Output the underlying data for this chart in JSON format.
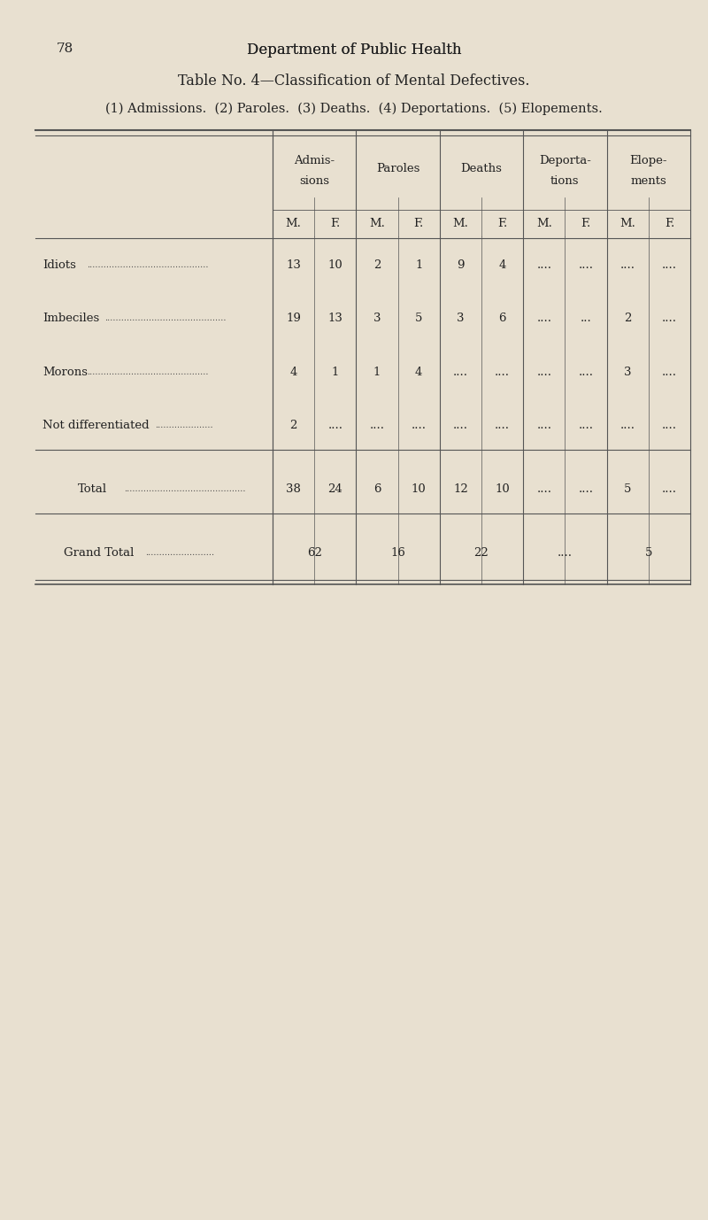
{
  "page_number": "78",
  "page_header": "Department of Public Health",
  "title": "Table No. 4—Classification of Mental Defectives.",
  "subtitle": "(1) Admissions.  (2) Paroles.  (3) Deaths.  (4) Deportations.  (5) Elopements.",
  "bg_color": "#e8e0d0",
  "col_headers_top": [
    "Admis-\nsions",
    "Paroles",
    "Deaths",
    "Deporta-\ntions",
    "Elope-\nments"
  ],
  "col_headers_mf": [
    "M.",
    "F.",
    "M.",
    "F.",
    "M.",
    "F.",
    "M.",
    "F.",
    "M.",
    "F."
  ],
  "row_labels": [
    "Idiots",
    "Imbeciles",
    "Morons",
    "Not differentiated"
  ],
  "row_dots": [
    "............................................",
    "............................................",
    "............................................",
    "....................."
  ],
  "data_rows": [
    [
      "13",
      "10",
      "2",
      "1",
      "9",
      "4",
      "....",
      "....",
      "....",
      "...."
    ],
    [
      "19",
      "13",
      "3",
      "5",
      "3",
      "6",
      "....",
      "...",
      "2",
      "...."
    ],
    [
      "4",
      "1",
      "1",
      "4",
      "....",
      "....",
      "....",
      "....",
      "3",
      "...."
    ],
    [
      "2",
      "....",
      "....",
      "....",
      "....",
      "....",
      "....",
      "....",
      "....",
      "...."
    ]
  ],
  "total_label": "Total",
  "total_dots": "............................................",
  "total_row": [
    "38",
    "24",
    "6",
    "10",
    "12",
    "10",
    "....",
    "....",
    "5",
    "...."
  ],
  "grand_total_label": "Grand Total",
  "grand_total_dots": ".........................",
  "grand_total_row": [
    "62",
    "",
    "16",
    "",
    "22",
    "",
    "....",
    "",
    "5",
    ""
  ],
  "grand_total_merged": true
}
